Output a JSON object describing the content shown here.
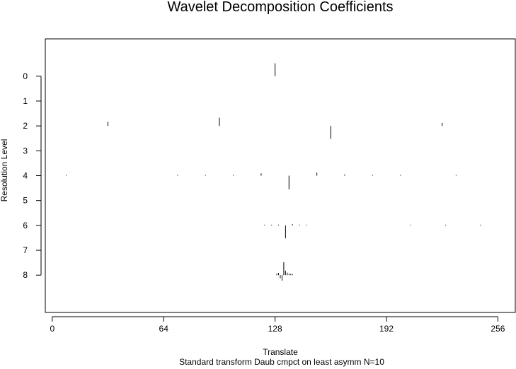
{
  "chart_data": {
    "type": "scatter",
    "title": "Wavelet Decomposition Coefficients",
    "xlabel": "Translate",
    "ylabel": "Resolution Level",
    "subtitle": "Standard transform Daub cmpct on least asymm N=10",
    "xlim": [
      -4,
      266
    ],
    "ylim": [
      9.5,
      -1.5
    ],
    "xticks": [
      0,
      64,
      128,
      192,
      256
    ],
    "yticks": [
      0,
      1,
      2,
      3,
      4,
      5,
      6,
      7,
      8
    ],
    "colors": {
      "stroke": "#000000",
      "background": "#ffffff"
    },
    "levels": [
      {
        "level": 0,
        "coefficients": [
          {
            "x": 128,
            "value": 0.52
          }
        ]
      },
      {
        "level": 1,
        "coefficients": []
      },
      {
        "level": 2,
        "coefficients": [
          {
            "x": 32,
            "value": 0.17
          },
          {
            "x": 96,
            "value": 0.33
          },
          {
            "x": 160,
            "value": -0.52
          },
          {
            "x": 224,
            "value": 0.12
          }
        ]
      },
      {
        "level": 4,
        "coefficients": [
          {
            "x": 8,
            "value": 0.03
          },
          {
            "x": 72,
            "value": 0.03
          },
          {
            "x": 88,
            "value": 0.03
          },
          {
            "x": 104,
            "value": 0.03
          },
          {
            "x": 120,
            "value": 0.09
          },
          {
            "x": 136,
            "value": -0.55
          },
          {
            "x": 152,
            "value": 0.12
          },
          {
            "x": 168,
            "value": 0.05
          },
          {
            "x": 184,
            "value": 0.03
          },
          {
            "x": 200,
            "value": 0.03
          },
          {
            "x": 232,
            "value": 0.03
          }
        ]
      },
      {
        "level": 6,
        "coefficients": [
          {
            "x": 122,
            "value": 0.02
          },
          {
            "x": 126,
            "value": 0.02
          },
          {
            "x": 130,
            "value": 0.03
          },
          {
            "x": 134,
            "value": -0.52
          },
          {
            "x": 138,
            "value": 0.05
          },
          {
            "x": 142,
            "value": 0.03
          },
          {
            "x": 146,
            "value": 0.02
          },
          {
            "x": 206,
            "value": 0.02
          },
          {
            "x": 226,
            "value": 0.02
          },
          {
            "x": 246,
            "value": 0.02
          }
        ]
      },
      {
        "level": 8,
        "coefficients": [
          {
            "x": 129,
            "value": 0.06
          },
          {
            "x": 130,
            "value": 0.09
          },
          {
            "x": 131,
            "value": -0.12
          },
          {
            "x": 132,
            "value": -0.22
          },
          {
            "x": 133,
            "value": 0.52
          },
          {
            "x": 134,
            "value": 0.18
          },
          {
            "x": 135,
            "value": 0.1
          },
          {
            "x": 136,
            "value": 0.06
          },
          {
            "x": 137,
            "value": 0.05
          },
          {
            "x": 138,
            "value": 0.04
          }
        ]
      }
    ]
  }
}
